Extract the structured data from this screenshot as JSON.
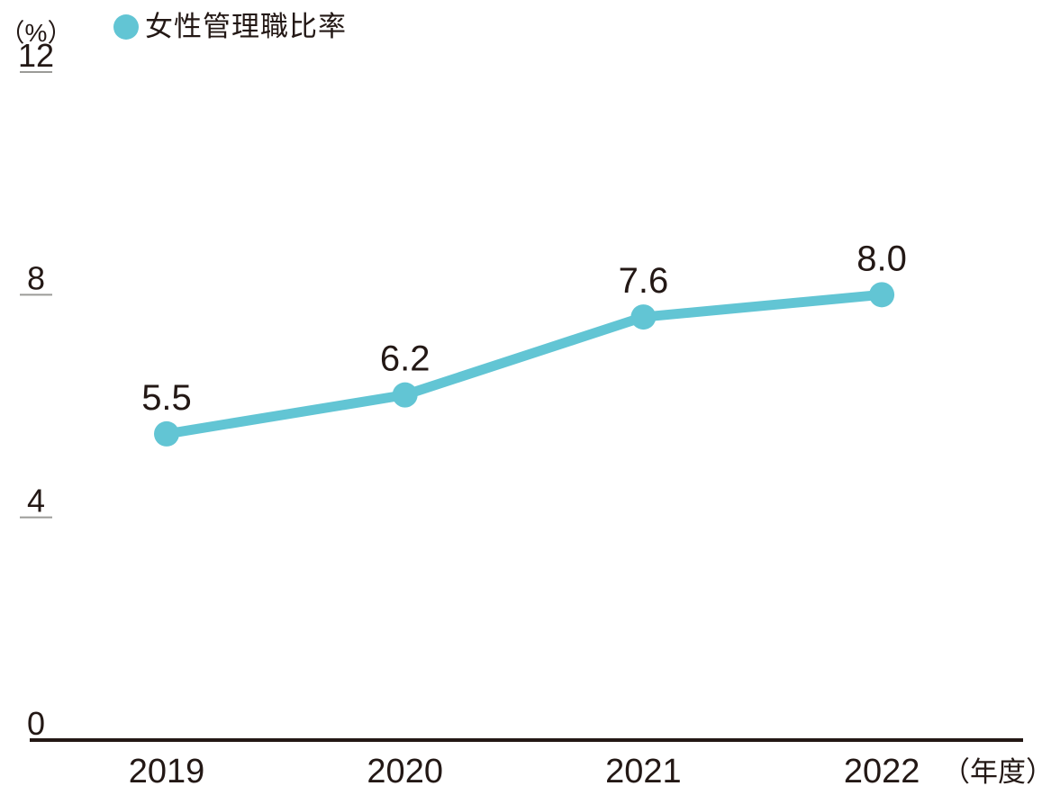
{
  "chart_data": {
    "type": "line",
    "title": "",
    "categories": [
      "2019",
      "2020",
      "2021",
      "2022"
    ],
    "series": [
      {
        "name": "女性管理職比率",
        "values": [
          5.5,
          6.2,
          7.6,
          8.0
        ]
      }
    ],
    "value_labels": [
      "5.5",
      "6.2",
      "7.6",
      "8.0"
    ],
    "y_unit": "（%）",
    "x_unit": "（年度）",
    "y_ticks": [
      0,
      4,
      8,
      12
    ],
    "ylim": [
      0,
      12
    ],
    "grid": false,
    "legend_position": "top-left",
    "colors": {
      "series": "#62C5D4",
      "axis_text": "#231815",
      "tick_line": "#9B9B98"
    }
  }
}
